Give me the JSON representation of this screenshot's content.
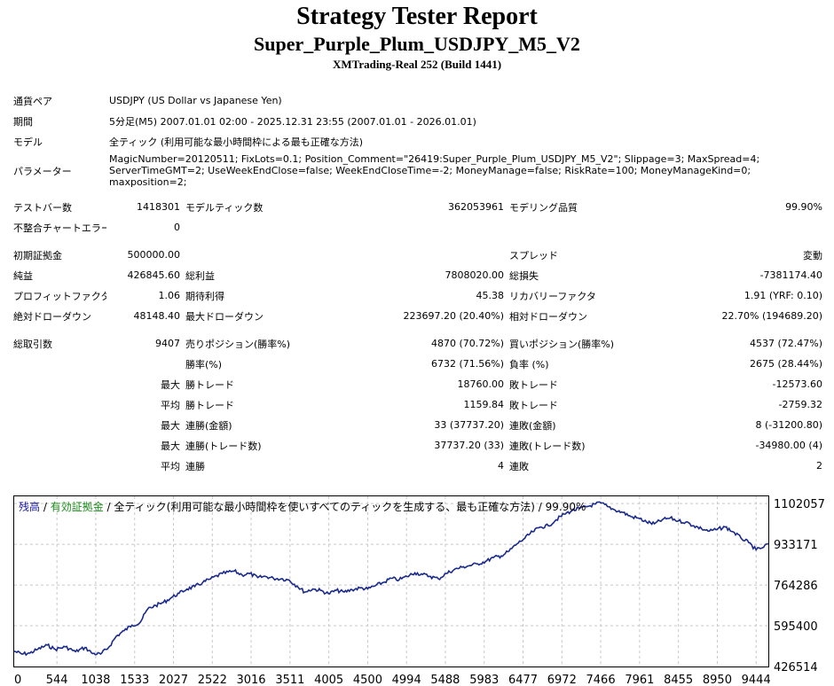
{
  "header": {
    "title": "Strategy Tester Report",
    "subtitle": "Super_Purple_Plum_USDJPY_M5_V2",
    "build": "XMTrading-Real 252 (Build 1441)"
  },
  "info": {
    "symbol_label": "通貨ペア",
    "symbol_value": "USDJPY (US Dollar vs Japanese Yen)",
    "period_label": "期間",
    "period_value": "5分足(M5) 2007.01.01 02:00 - 2025.12.31 23:55 (2007.01.01 - 2026.01.01)",
    "model_label": "モデル",
    "model_value": "全ティック (利用可能な最小時間枠による最も正確な方法)",
    "params_label": "パラメーター",
    "params_value": "MagicNumber=20120511; FixLots=0.1; Position_Comment=\"26419:Super_Purple_Plum_USDJPY_M5_V2\"; Slippage=3; MaxSpread=4; ServerTimeGMT=2; UseWeekEndClose=false; WeekEndCloseTime=-2; MoneyManage=false; RiskRate=100; MoneyManageKind=0; maxposition=2;"
  },
  "stats": {
    "bars_label": "テストバー数",
    "bars_value": "1418301",
    "ticks_label": "モデルティック数",
    "ticks_value": "362053961",
    "quality_label": "モデリング品質",
    "quality_value": "99.90%",
    "mismatch_label": "不整合チャートエラー",
    "mismatch_value": "0",
    "deposit_label": "初期証拠金",
    "deposit_value": "500000.00",
    "spread_label": "スプレッド",
    "spread_value": "変動",
    "net_label": "純益",
    "net_value": "426845.60",
    "gross_profit_label": "総利益",
    "gross_profit_value": "7808020.00",
    "gross_loss_label": "総損失",
    "gross_loss_value": "-7381174.40",
    "pf_label": "プロフィットファクタ",
    "pf_value": "1.06",
    "expected_label": "期待利得",
    "expected_value": "45.38",
    "recovery_label": "リカバリーファクタ",
    "recovery_value": "1.91 (YRF: 0.10)",
    "abs_dd_label": "絶対ドローダウン",
    "abs_dd_value": "48148.40",
    "max_dd_label": "最大ドローダウン",
    "max_dd_value": "223697.20 (20.40%)",
    "rel_dd_label": "相対ドローダウン",
    "rel_dd_value": "22.70% (194689.20)",
    "trades_label": "総取引数",
    "trades_value": "9407",
    "short_label": "売りポジション(勝率%)",
    "short_value": "4870 (70.72%)",
    "long_label": "買いポジション(勝率%)",
    "long_value": "4537 (72.47%)",
    "win_label": "勝率(%)",
    "win_value": "6732 (71.56%)",
    "loss_label": "負率 (%)",
    "loss_value": "2675 (28.44%)",
    "largest": "最大",
    "average": "平均",
    "win_trade_label": "勝トレード",
    "largest_win_value": "18760.00",
    "loss_trade_label": "敗トレード",
    "largest_loss_value": "-12573.60",
    "avg_win_value": "1159.84",
    "avg_loss_value": "-2759.32",
    "consec_wins_amt_label": "連勝(金額)",
    "consec_wins_amt_value": "33 (37737.20)",
    "consec_losses_amt_label": "連敗(金額)",
    "consec_losses_amt_value": "8 (-31200.80)",
    "consec_wins_cnt_label": "連勝(トレード数)",
    "consec_wins_cnt_value": "37737.20 (33)",
    "consec_losses_cnt_label": "連敗(トレード数)",
    "consec_losses_cnt_value": "-34980.00 (4)",
    "avg_consec_wins_label": "連勝",
    "avg_consec_wins_value": "4",
    "avg_consec_losses_label": "連敗",
    "avg_consec_losses_value": "2"
  },
  "chart_data": {
    "type": "line",
    "legend": {
      "balance": "残高",
      "sep": " / ",
      "equity": "有効証拠金",
      "rest": " / 全ティック(利用可能な最小時間枠を使いすべてのティックを生成する、最も正確な方法) / 99.90%"
    },
    "colors": {
      "line": "#1a2a8c",
      "balance_text": "#1a1aa0",
      "equity_text": "#1a8a1a",
      "grid": "#c8c8c8"
    },
    "x_ticks": [
      0,
      544,
      1038,
      1533,
      2027,
      2522,
      3016,
      3511,
      4005,
      4500,
      4994,
      5488,
      5983,
      6477,
      6972,
      7466,
      7961,
      8455,
      8950,
      9444
    ],
    "y_ticks": [
      426514,
      595400,
      764286,
      933171,
      1102057
    ],
    "xlim": [
      0,
      9600
    ],
    "ylim": [
      426514,
      1132000
    ],
    "series": [
      {
        "x": [
          0,
          100,
          200,
          300,
          420,
          520,
          650,
          780,
          900,
          1000,
          1100,
          1200,
          1300,
          1400,
          1500,
          1600,
          1700,
          1800,
          1900,
          2000,
          2100,
          2200,
          2300,
          2400,
          2500,
          2650,
          2800,
          2900,
          3000,
          3100,
          3200,
          3300,
          3400,
          3500,
          3600,
          3700,
          3800,
          3900,
          4000,
          4100,
          4200,
          4300,
          4400,
          4500,
          4600,
          4700,
          4800,
          4900,
          5000,
          5100,
          5200,
          5300,
          5400,
          5500,
          5600,
          5700,
          5800,
          5900,
          6000,
          6100,
          6200,
          6300,
          6400,
          6500,
          6600,
          6700,
          6800,
          6900,
          7000,
          7100,
          7200,
          7300,
          7400,
          7466,
          7550,
          7650,
          7750,
          7850,
          7961,
          8050,
          8150,
          8250,
          8350,
          8455,
          8550,
          8650,
          8750,
          8850,
          8950,
          9050,
          9150,
          9250,
          9350,
          9444,
          9520,
          9600
        ],
        "y": [
          490000,
          478000,
          482000,
          498000,
          515000,
          498000,
          508000,
          488000,
          505000,
          480000,
          478000,
          505000,
          552000,
          575000,
          598000,
          608000,
          665000,
          680000,
          692000,
          712000,
          730000,
          748000,
          758000,
          775000,
          790000,
          812000,
          822000,
          806000,
          812000,
          795000,
          800000,
          792000,
          790000,
          785000,
          760000,
          735000,
          748000,
          742000,
          728000,
          742000,
          735000,
          745000,
          752000,
          748000,
          762000,
          775000,
          792000,
          786000,
          800000,
          815000,
          808000,
          800000,
          790000,
          812000,
          828000,
          838000,
          845000,
          852000,
          862000,
          878000,
          885000,
          905000,
          935000,
          958000,
          985000,
          1005000,
          1010000,
          1035000,
          1058000,
          1072000,
          1082000,
          1090000,
          1100000,
          1105000,
          1090000,
          1075000,
          1065000,
          1048000,
          1040000,
          1025000,
          1018000,
          1035000,
          1042000,
          1030000,
          1025000,
          1010000,
          998000,
          988000,
          995000,
          1005000,
          985000,
          960000,
          940000,
          910000,
          918000,
          935000
        ]
      }
    ]
  }
}
